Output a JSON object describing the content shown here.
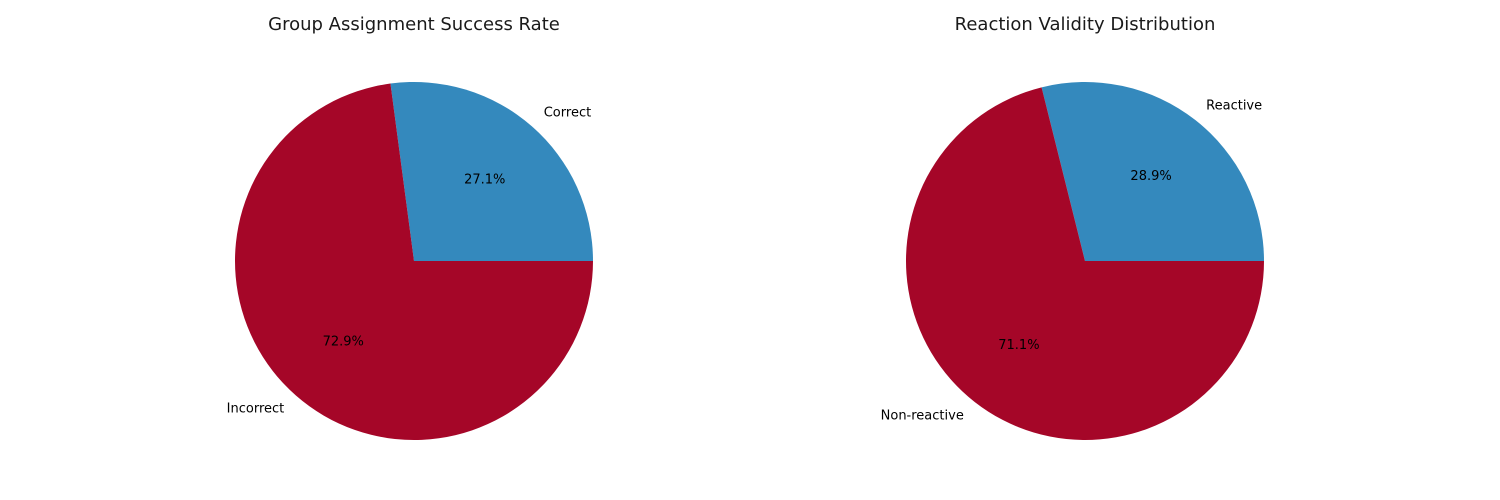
{
  "chart_data": [
    {
      "type": "pie",
      "title": "Group Assignment Success Rate",
      "categories": [
        "Correct",
        "Incorrect"
      ],
      "values": [
        27.1,
        72.9
      ],
      "value_labels": [
        "27.1%",
        "72.9%"
      ],
      "colors": [
        "#3489bd",
        "#a50628"
      ],
      "start_angle": "0° (3 o'clock), counter-clockwise",
      "legend": "none"
    },
    {
      "type": "pie",
      "title": "Reaction Validity Distribution",
      "categories": [
        "Reactive",
        "Non-reactive"
      ],
      "values": [
        28.9,
        71.1
      ],
      "value_labels": [
        "28.9%",
        "71.1%"
      ],
      "colors": [
        "#3489bd",
        "#a50628"
      ],
      "start_angle": "0° (3 o'clock), counter-clockwise",
      "legend": "none"
    }
  ]
}
